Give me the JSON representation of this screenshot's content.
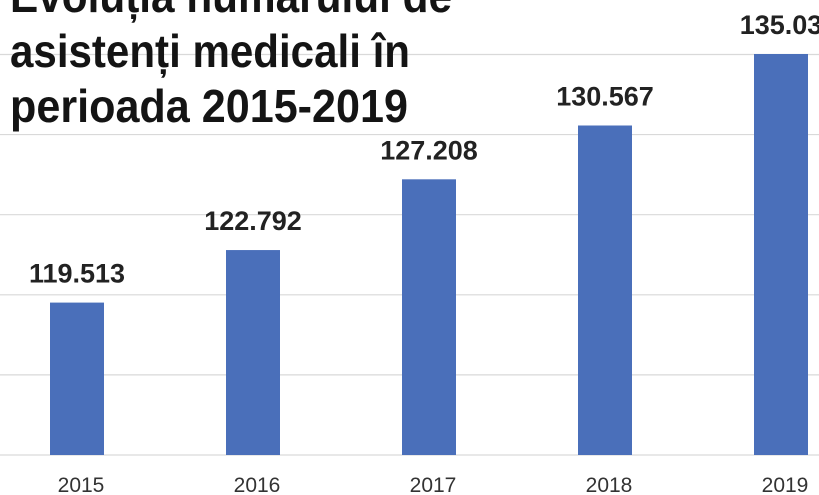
{
  "chart_data": {
    "type": "bar",
    "title": [
      "Evoluția numărului de",
      "asistenți medicali în",
      "perioada 2015-2019"
    ],
    "categories": [
      "2015",
      "2016",
      "2017",
      "2018",
      "2019"
    ],
    "values": [
      119.513,
      122.792,
      127.208,
      130.567,
      135.03
    ],
    "color": "#4a6fba",
    "ylim": [
      110,
      138.4
    ],
    "yticks": [
      110,
      115,
      120,
      125,
      130,
      135
    ],
    "grid": true
  }
}
